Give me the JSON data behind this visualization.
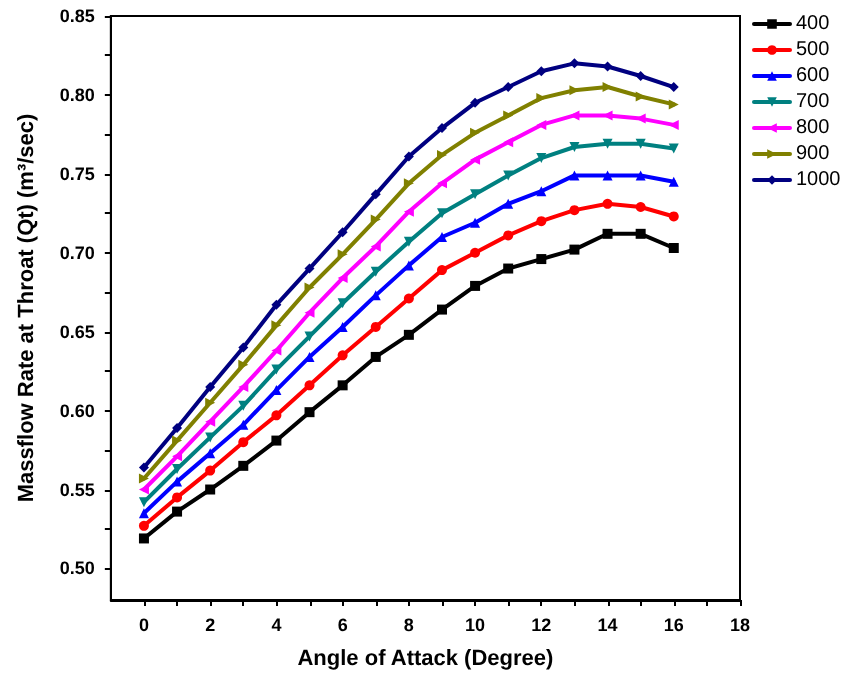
{
  "chart_data": {
    "type": "line",
    "xlabel": "Angle of Attack (Degree)",
    "ylabel": "Massflow Rate at Throat (Qt) (m³/sec)",
    "x": [
      0,
      1,
      2,
      3,
      4,
      5,
      6,
      7,
      8,
      9,
      10,
      11,
      12,
      13,
      14,
      15,
      16
    ],
    "xlim": [
      -1,
      18
    ],
    "xticks": [
      {
        "value": 0,
        "label": "0"
      },
      {
        "value": 1,
        "label": null
      },
      {
        "value": 2,
        "label": "2"
      },
      {
        "value": 3,
        "label": null
      },
      {
        "value": 4,
        "label": "4"
      },
      {
        "value": 5,
        "label": null
      },
      {
        "value": 6,
        "label": "6"
      },
      {
        "value": 7,
        "label": null
      },
      {
        "value": 8,
        "label": "8"
      },
      {
        "value": 9,
        "label": null
      },
      {
        "value": 10,
        "label": "10"
      },
      {
        "value": 11,
        "label": null
      },
      {
        "value": 12,
        "label": "12"
      },
      {
        "value": 13,
        "label": null
      },
      {
        "value": 14,
        "label": "14"
      },
      {
        "value": 15,
        "label": null
      },
      {
        "value": 16,
        "label": "16"
      },
      {
        "value": 17,
        "label": null
      },
      {
        "value": 18,
        "label": "18"
      }
    ],
    "ylim": [
      0.48,
      0.85
    ],
    "yticks": [
      {
        "value": 0.5,
        "label": "0.50"
      },
      {
        "value": 0.525,
        "label": null
      },
      {
        "value": 0.55,
        "label": "0.55"
      },
      {
        "value": 0.575,
        "label": null
      },
      {
        "value": 0.6,
        "label": "0.60"
      },
      {
        "value": 0.625,
        "label": null
      },
      {
        "value": 0.65,
        "label": "0.65"
      },
      {
        "value": 0.675,
        "label": null
      },
      {
        "value": 0.7,
        "label": "0.70"
      },
      {
        "value": 0.725,
        "label": null
      },
      {
        "value": 0.75,
        "label": "0.75"
      },
      {
        "value": 0.775,
        "label": null
      },
      {
        "value": 0.8,
        "label": "0.80"
      },
      {
        "value": 0.825,
        "label": null
      },
      {
        "value": 0.85,
        "label": "0.85"
      }
    ],
    "grid": false,
    "legend": "top right",
    "line_style": "solid",
    "series": [
      {
        "name": "400",
        "color": "#000000",
        "marker": "square",
        "values": [
          0.519,
          0.536,
          0.55,
          0.565,
          0.581,
          0.599,
          0.616,
          0.634,
          0.648,
          0.664,
          0.679,
          0.69,
          0.696,
          0.702,
          0.712,
          0.712,
          0.703
        ]
      },
      {
        "name": "500",
        "color": "#ff0000",
        "marker": "circle",
        "values": [
          0.527,
          0.545,
          0.562,
          0.58,
          0.597,
          0.616,
          0.635,
          0.653,
          0.671,
          0.689,
          0.7,
          0.711,
          0.72,
          0.727,
          0.731,
          0.729,
          0.723
        ]
      },
      {
        "name": "600",
        "color": "#0000ff",
        "marker": "triangle",
        "values": [
          0.535,
          0.555,
          0.573,
          0.591,
          0.613,
          0.634,
          0.653,
          0.673,
          0.692,
          0.71,
          0.719,
          0.731,
          0.739,
          0.749,
          0.749,
          0.749,
          0.745
        ]
      },
      {
        "name": "700",
        "color": "#008080",
        "marker": "triangle-down",
        "values": [
          0.542,
          0.563,
          0.583,
          0.603,
          0.626,
          0.647,
          0.668,
          0.688,
          0.707,
          0.725,
          0.737,
          0.749,
          0.76,
          0.767,
          0.769,
          0.769,
          0.766
        ]
      },
      {
        "name": "800",
        "color": "#ff00ff",
        "marker": "triangle-left",
        "values": [
          0.55,
          0.571,
          0.593,
          0.615,
          0.638,
          0.662,
          0.684,
          0.704,
          0.726,
          0.744,
          0.759,
          0.77,
          0.781,
          0.787,
          0.787,
          0.785,
          0.781
        ]
      },
      {
        "name": "900",
        "color": "#808000",
        "marker": "triangle-right",
        "values": [
          0.557,
          0.581,
          0.605,
          0.629,
          0.654,
          0.678,
          0.699,
          0.721,
          0.744,
          0.762,
          0.776,
          0.787,
          0.798,
          0.803,
          0.805,
          0.799,
          0.794
        ]
      },
      {
        "name": "1000",
        "color": "#000080",
        "marker": "diamond",
        "values": [
          0.564,
          0.589,
          0.615,
          0.64,
          0.667,
          0.69,
          0.713,
          0.737,
          0.761,
          0.779,
          0.795,
          0.805,
          0.815,
          0.82,
          0.818,
          0.812,
          0.805
        ]
      }
    ]
  }
}
